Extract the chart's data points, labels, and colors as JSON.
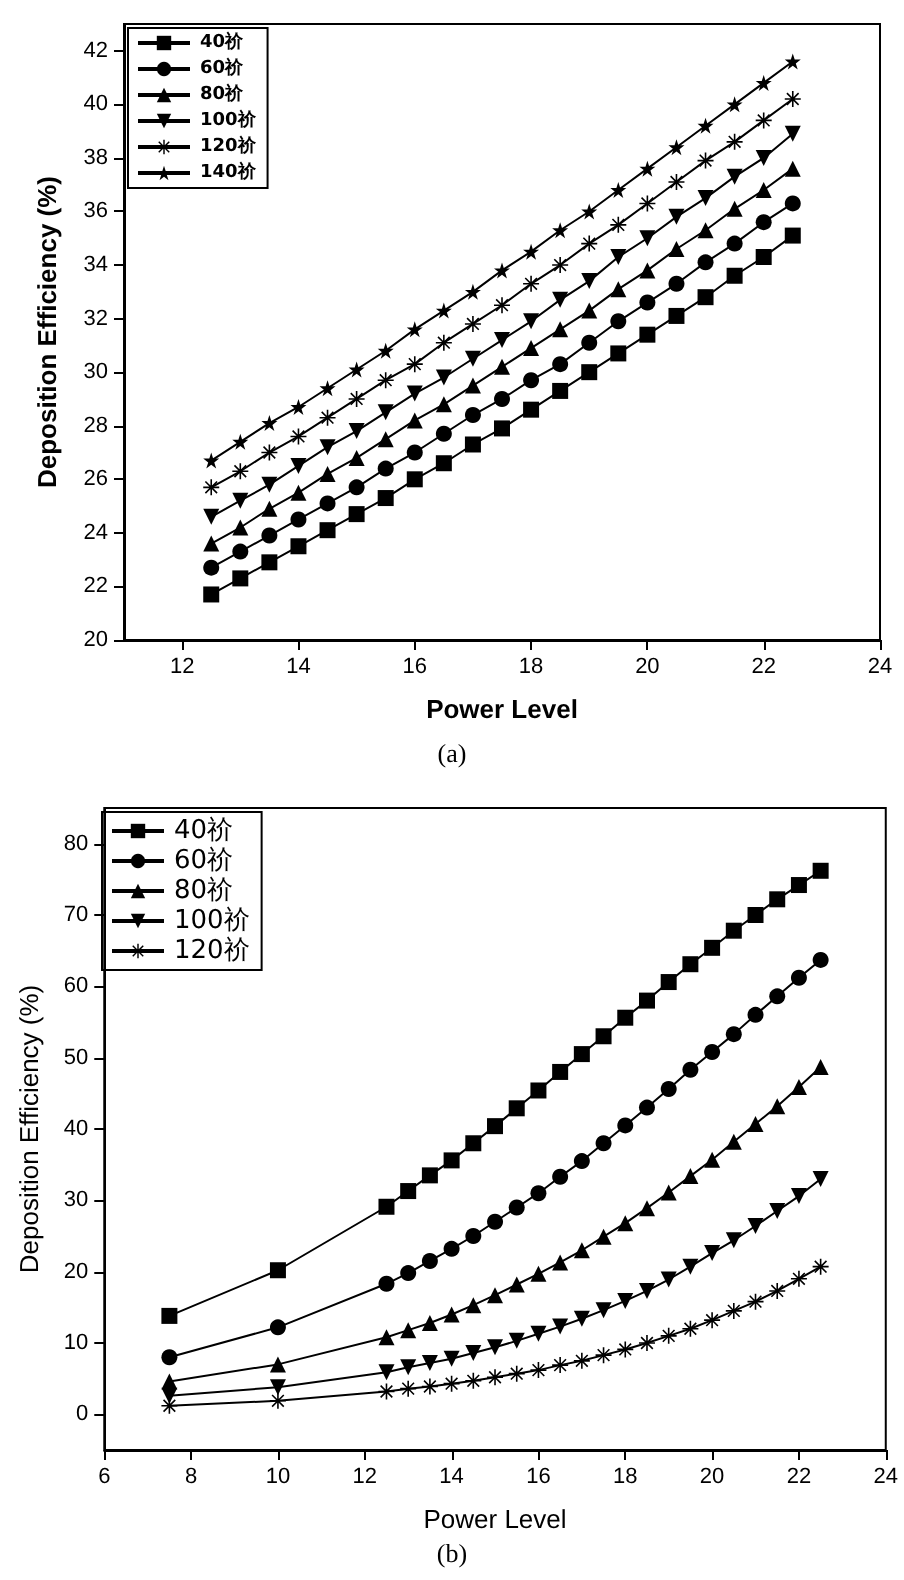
{
  "chart_data": [
    {
      "type": "line",
      "title": "(a)",
      "xlabel": "Power Level",
      "ylabel": "Deposition Efficiency (%)",
      "x": [
        12.5,
        13,
        13.5,
        14,
        14.5,
        15,
        15.5,
        16,
        16.5,
        17,
        17.5,
        18,
        18.5,
        19,
        19.5,
        20,
        20.5,
        21,
        21.5,
        22,
        22.5
      ],
      "xlim": [
        11,
        24
      ],
      "xticks": [
        12,
        14,
        16,
        18,
        20,
        22,
        24
      ],
      "ylim": [
        20,
        43
      ],
      "yticks": [
        20,
        22,
        24,
        26,
        28,
        30,
        32,
        34,
        36,
        38,
        40,
        42
      ],
      "grid": false,
      "legend": "top left",
      "series": [
        {
          "name": "40祄",
          "color": "#000000",
          "marker": "square",
          "values": [
            21.7,
            22.3,
            22.9,
            23.5,
            24.1,
            24.7,
            25.3,
            26.0,
            26.6,
            27.3,
            27.9,
            28.6,
            29.3,
            30.0,
            30.7,
            31.4,
            32.1,
            32.8,
            33.6,
            34.3,
            35.1
          ]
        },
        {
          "name": "60祄",
          "color": "#000000",
          "marker": "circle",
          "values": [
            22.7,
            23.3,
            23.9,
            24.5,
            25.1,
            25.7,
            26.4,
            27.0,
            27.7,
            28.4,
            29.0,
            29.7,
            30.3,
            31.1,
            31.9,
            32.6,
            33.3,
            34.1,
            34.8,
            35.6,
            36.3
          ]
        },
        {
          "name": "80祄",
          "color": "#000000",
          "marker": "triangle",
          "values": [
            23.6,
            24.2,
            24.9,
            25.5,
            26.2,
            26.8,
            27.5,
            28.2,
            28.8,
            29.5,
            30.2,
            30.9,
            31.6,
            32.3,
            33.1,
            33.8,
            34.6,
            35.3,
            36.1,
            36.8,
            37.6
          ]
        },
        {
          "name": "100祄",
          "color": "#000000",
          "marker": "triangle-down",
          "values": [
            24.6,
            25.2,
            25.8,
            26.5,
            27.2,
            27.8,
            28.5,
            29.2,
            29.8,
            30.5,
            31.2,
            31.9,
            32.7,
            33.4,
            34.3,
            35.0,
            35.8,
            36.5,
            37.3,
            38.0,
            38.9
          ]
        },
        {
          "name": "120祄",
          "color": "#000000",
          "marker": "cross",
          "values": [
            25.7,
            26.3,
            27.0,
            27.6,
            28.3,
            29.0,
            29.7,
            30.3,
            31.1,
            31.8,
            32.5,
            33.3,
            34.0,
            34.8,
            35.5,
            36.3,
            37.1,
            37.9,
            38.6,
            39.4,
            40.2
          ]
        },
        {
          "name": "140祄",
          "color": "#000000",
          "marker": "star",
          "values": [
            26.7,
            27.4,
            28.1,
            28.7,
            29.4,
            30.1,
            30.8,
            31.6,
            32.3,
            33.0,
            33.8,
            34.5,
            35.3,
            36.0,
            36.8,
            37.6,
            38.4,
            39.2,
            40.0,
            40.8,
            41.6
          ]
        }
      ]
    },
    {
      "type": "line",
      "title": "(b)",
      "xlabel": "Power Level",
      "ylabel": "Deposition Efficiency (%)",
      "x": [
        7.5,
        10,
        12.5,
        13,
        13.5,
        14,
        14.5,
        15,
        15.5,
        16,
        16.5,
        17,
        17.5,
        18,
        18.5,
        19,
        19.5,
        20,
        20.5,
        21,
        21.5,
        22,
        22.5
      ],
      "xlim": [
        6,
        24
      ],
      "xticks": [
        6,
        8,
        10,
        12,
        14,
        16,
        18,
        20,
        22,
        24
      ],
      "ylim": [
        -5,
        85
      ],
      "yticks": [
        0,
        10,
        20,
        30,
        40,
        50,
        60,
        70,
        80
      ],
      "grid": false,
      "legend": "top left",
      "series": [
        {
          "name": "40祄",
          "color": "#000000",
          "marker": "square",
          "values": [
            13.8,
            20.2,
            29.1,
            31.3,
            33.5,
            35.6,
            38.0,
            40.4,
            42.9,
            45.4,
            48.0,
            50.5,
            53.0,
            55.6,
            58.0,
            60.6,
            63.1,
            65.4,
            67.8,
            70.0,
            72.2,
            74.2,
            76.2
          ]
        },
        {
          "name": "60祄",
          "color": "#000000",
          "marker": "circle",
          "values": [
            8.0,
            12.2,
            18.3,
            19.8,
            21.5,
            23.2,
            25.0,
            27.0,
            29.0,
            31.0,
            33.3,
            35.5,
            38.0,
            40.5,
            43.0,
            45.6,
            48.3,
            50.8,
            53.3,
            56.0,
            58.6,
            61.2,
            63.7
          ]
        },
        {
          "name": "80祄",
          "color": "#000000",
          "marker": "triangle",
          "values": [
            4.6,
            7.0,
            10.8,
            11.8,
            12.8,
            14.0,
            15.3,
            16.7,
            18.2,
            19.7,
            21.3,
            23.0,
            24.9,
            26.8,
            28.9,
            31.1,
            33.4,
            35.7,
            38.2,
            40.7,
            43.2,
            45.9,
            48.7
          ]
        },
        {
          "name": "100祄",
          "color": "#000000",
          "marker": "triangle-down",
          "values": [
            2.6,
            3.8,
            5.9,
            6.6,
            7.2,
            7.8,
            8.6,
            9.4,
            10.3,
            11.3,
            12.3,
            13.4,
            14.6,
            15.9,
            17.3,
            18.9,
            20.7,
            22.6,
            24.4,
            26.4,
            28.5,
            30.6,
            33.0
          ]
        },
        {
          "name": "120祄",
          "color": "#000000",
          "marker": "cross",
          "values": [
            1.2,
            1.9,
            3.2,
            3.6,
            3.9,
            4.3,
            4.7,
            5.2,
            5.7,
            6.2,
            6.9,
            7.5,
            8.3,
            9.1,
            10.0,
            11.0,
            12.0,
            13.2,
            14.5,
            15.8,
            17.3,
            19.0,
            20.7
          ]
        }
      ]
    }
  ]
}
